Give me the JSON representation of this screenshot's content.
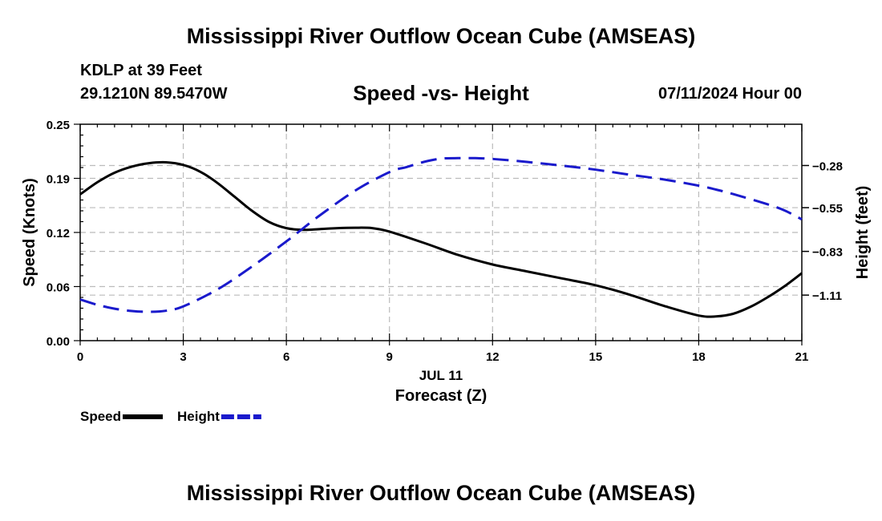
{
  "title": "Mississippi River Outflow Ocean Cube (AMSEAS)",
  "station": "KDLP at 39 Feet",
  "coordinates": "29.1210N  89.5470W",
  "datetime": "07/11/2024 Hour 00",
  "footer_title": "Mississippi River Outflow Ocean Cube (AMSEAS)",
  "chart_data": {
    "type": "line",
    "title": "Speed -vs- Height",
    "xlabel": "Forecast (Z)",
    "date_label": "JUL 11",
    "ylabel": "Speed (Knots)",
    "y2label": "Height (feet)",
    "xlim": [
      0,
      21
    ],
    "ylim": [
      0,
      0.25
    ],
    "y2lim": [
      -1.4017,
      -0.0157
    ],
    "x_ticks": [
      0,
      3,
      6,
      9,
      12,
      15,
      18,
      21
    ],
    "x_tick_labels": [
      "0",
      "3",
      "6",
      "9",
      "12",
      "15",
      "18",
      "21"
    ],
    "y_ticks": [
      0,
      0.0625,
      0.125,
      0.1875,
      0.25
    ],
    "y_tick_labels": [
      "0.00",
      "0.06",
      "0.12",
      "0.19",
      "0.25"
    ],
    "y2_ticks": [
      -1.11,
      -0.83,
      -0.55,
      -0.28
    ],
    "y2_tick_labels": [
      "-1.11",
      "-0.83",
      "-0.55",
      "-0.28"
    ],
    "grid": true,
    "legend_position": "bottom-left",
    "series": [
      {
        "name": "Speed",
        "axis": "left",
        "color": "#000000",
        "style": "solid",
        "x": [
          0,
          0.5,
          1,
          1.5,
          2,
          2.5,
          3,
          3.5,
          4,
          4.5,
          5,
          5.5,
          6,
          6.5,
          7,
          7.5,
          8,
          8.5,
          9,
          10,
          11,
          12,
          13,
          14,
          15,
          16,
          17,
          18,
          18.5,
          19,
          19.5,
          20,
          20.5,
          21
        ],
        "values": [
          0.169,
          0.183,
          0.194,
          0.201,
          0.205,
          0.206,
          0.203,
          0.195,
          0.182,
          0.166,
          0.15,
          0.137,
          0.13,
          0.128,
          0.129,
          0.13,
          0.1305,
          0.13,
          0.126,
          0.113,
          0.099,
          0.088,
          0.08,
          0.072,
          0.064,
          0.053,
          0.04,
          0.029,
          0.028,
          0.031,
          0.039,
          0.05,
          0.063,
          0.078
        ]
      },
      {
        "name": "Height",
        "axis": "right",
        "color": "#1a1acc",
        "style": "dashed",
        "x": [
          0,
          0.5,
          1,
          1.5,
          2,
          2.5,
          3,
          4,
          5,
          6,
          6.5,
          7,
          8,
          9,
          9.5,
          10,
          10.5,
          11,
          11.5,
          12,
          13,
          14,
          15,
          16,
          17,
          18,
          18.5,
          19,
          20,
          20.5,
          21
        ],
        "values": [
          -1.138,
          -1.172,
          -1.197,
          -1.212,
          -1.217,
          -1.21,
          -1.182,
          -1.073,
          -0.927,
          -0.766,
          -0.68,
          -0.595,
          -0.441,
          -0.322,
          -0.29,
          -0.257,
          -0.236,
          -0.233,
          -0.233,
          -0.238,
          -0.257,
          -0.28,
          -0.307,
          -0.339,
          -0.37,
          -0.409,
          -0.434,
          -0.463,
          -0.528,
          -0.568,
          -0.625
        ]
      }
    ]
  }
}
